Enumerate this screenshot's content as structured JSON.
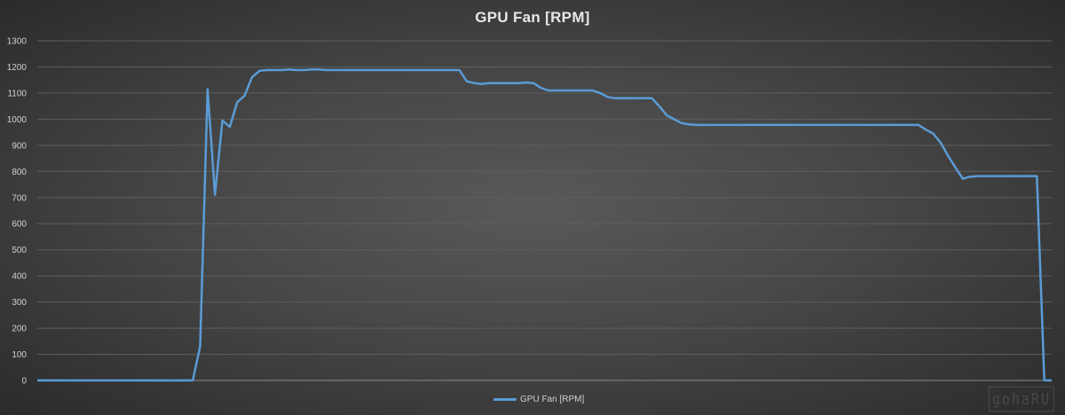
{
  "chart_data": {
    "type": "line",
    "title": "GPU Fan [RPM]",
    "xlabel": "",
    "ylabel": "",
    "ylim": [
      0,
      1300
    ],
    "yticks": [
      0,
      100,
      200,
      300,
      400,
      500,
      600,
      700,
      800,
      900,
      1000,
      1100,
      1200,
      1300
    ],
    "grid": true,
    "legend_position": "bottom",
    "series": [
      {
        "name": "GPU Fan [RPM]",
        "color": "#5b9bd5",
        "values": [
          0,
          0,
          0,
          0,
          0,
          0,
          0,
          0,
          0,
          0,
          0,
          0,
          0,
          0,
          0,
          0,
          0,
          0,
          0,
          0,
          0,
          0,
          130,
          1115,
          710,
          995,
          970,
          1065,
          1090,
          1160,
          1185,
          1188,
          1188,
          1188,
          1190,
          1188,
          1188,
          1190,
          1190,
          1188,
          1188,
          1188,
          1188,
          1188,
          1188,
          1188,
          1188,
          1188,
          1188,
          1188,
          1188,
          1188,
          1188,
          1188,
          1188,
          1188,
          1188,
          1188,
          1145,
          1138,
          1135,
          1138,
          1138,
          1138,
          1138,
          1138,
          1140,
          1138,
          1120,
          1110,
          1110,
          1110,
          1110,
          1110,
          1110,
          1110,
          1100,
          1085,
          1080,
          1080,
          1080,
          1080,
          1080,
          1080,
          1050,
          1015,
          1000,
          985,
          980,
          978,
          978,
          978,
          978,
          978,
          978,
          978,
          978,
          978,
          978,
          978,
          978,
          978,
          978,
          978,
          978,
          978,
          978,
          978,
          978,
          978,
          978,
          978,
          978,
          978,
          978,
          978,
          978,
          978,
          978,
          978,
          960,
          945,
          910,
          860,
          815,
          772,
          780,
          782,
          782,
          782,
          782,
          782,
          782,
          782,
          782,
          782,
          0,
          0
        ]
      }
    ]
  },
  "legend": {
    "label": "GPU Fan [RPM]"
  },
  "watermark": "gohaRU"
}
